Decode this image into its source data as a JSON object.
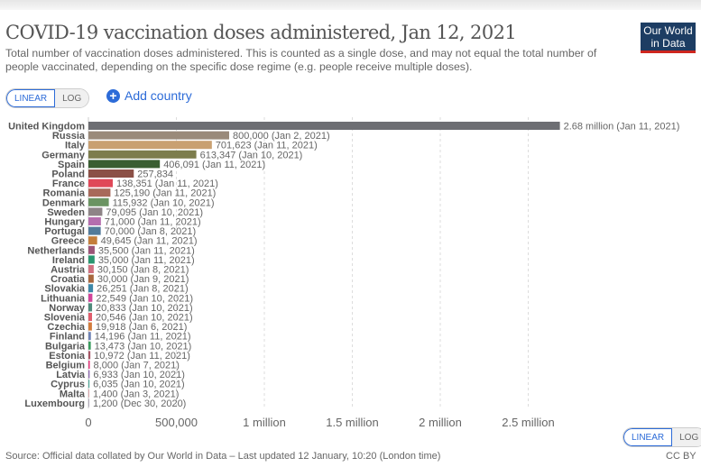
{
  "header": {
    "title": "COVID-19 vaccination doses administered, Jan 12, 2021",
    "subtitle": "Total number of vaccination doses administered. This is counted as a single dose, and may not equal the total number of people vaccinated, depending on the specific dose regime (e.g. people receive multiple doses).",
    "logo": "Our World in Data"
  },
  "controls": {
    "linear": "LINEAR",
    "log": "LOG",
    "add_country": "Add country",
    "add_icon": "plus-circle-icon"
  },
  "footer": {
    "source": "Source: Official data collated by Our World in Data – Last updated 12 January, 10:20 (London time)",
    "license": "CC BY"
  },
  "chart_data": {
    "type": "bar",
    "orientation": "horizontal",
    "xlim": [
      0,
      2680000
    ],
    "grid": true,
    "xticks": [
      0,
      500000,
      1000000,
      1500000,
      2000000,
      2500000
    ],
    "xtick_labels": [
      "0",
      "500,000",
      "1 million",
      "1.5 million",
      "2 million",
      "2.5 million"
    ],
    "rows": [
      {
        "country": "United Kingdom",
        "value": 2680000,
        "label": "2.68 million (Jan 11, 2021)",
        "color": "#6d6e73"
      },
      {
        "country": "Russia",
        "value": 800000,
        "label": "800,000 (Jan 2, 2021)",
        "color": "#9a8a7a"
      },
      {
        "country": "Italy",
        "value": 701623,
        "label": "701,623 (Jan 11, 2021)",
        "color": "#c9a071"
      },
      {
        "country": "Germany",
        "value": 613347,
        "label": "613,347 (Jan 10, 2021)",
        "color": "#7d7d4d"
      },
      {
        "country": "Spain",
        "value": 406091,
        "label": "406,091 (Jan 11, 2021)",
        "color": "#3a5e32"
      },
      {
        "country": "Poland",
        "value": 257834,
        "label": "257,834",
        "color": "#8b5046"
      },
      {
        "country": "France",
        "value": 138351,
        "label": "138,351 (Jan 11, 2021)",
        "color": "#e04858"
      },
      {
        "country": "Romania",
        "value": 125190,
        "label": "125,190 (Jan 11, 2021)",
        "color": "#a8695a"
      },
      {
        "country": "Denmark",
        "value": 115932,
        "label": "115,932 (Jan 10, 2021)",
        "color": "#6b9462"
      },
      {
        "country": "Sweden",
        "value": 79095,
        "label": "79,095 (Jan 10, 2021)",
        "color": "#8e8487"
      },
      {
        "country": "Hungary",
        "value": 71000,
        "label": "71,000 (Jan 11, 2021)",
        "color": "#b56eae"
      },
      {
        "country": "Portugal",
        "value": 70000,
        "label": "70,000 (Jan 8, 2021)",
        "color": "#537b9a"
      },
      {
        "country": "Greece",
        "value": 49645,
        "label": "49,645 (Jan 11, 2021)",
        "color": "#c47e3b"
      },
      {
        "country": "Netherlands",
        "value": 35500,
        "label": "35,500 (Jan 11, 2021)",
        "color": "#9c5478"
      },
      {
        "country": "Ireland",
        "value": 35000,
        "label": "35,000 (Jan 11, 2021)",
        "color": "#2a9670"
      },
      {
        "country": "Austria",
        "value": 30150,
        "label": "30,150 (Jan 8, 2021)",
        "color": "#d07180"
      },
      {
        "country": "Croatia",
        "value": 30000,
        "label": "30,000 (Jan 9, 2021)",
        "color": "#a8673e"
      },
      {
        "country": "Slovakia",
        "value": 26251,
        "label": "26,251 (Jan 8, 2021)",
        "color": "#3d88a8"
      },
      {
        "country": "Lithuania",
        "value": 22549,
        "label": "22,549 (Jan 10, 2021)",
        "color": "#d2449a"
      },
      {
        "country": "Norway",
        "value": 20833,
        "label": "20,833 (Jan 10, 2021)",
        "color": "#4f8a7b"
      },
      {
        "country": "Slovenia",
        "value": 20546,
        "label": "20,546 (Jan 10, 2021)",
        "color": "#e05d6c"
      },
      {
        "country": "Czechia",
        "value": 19918,
        "label": "19,918 (Jan 6, 2021)",
        "color": "#d37c3c"
      },
      {
        "country": "Finland",
        "value": 14196,
        "label": "14,196 (Jan 11, 2021)",
        "color": "#6f83b5"
      },
      {
        "country": "Bulgaria",
        "value": 13473,
        "label": "13,473 (Jan 10, 2021)",
        "color": "#3a9c5e"
      },
      {
        "country": "Estonia",
        "value": 10972,
        "label": "10,972 (Jan 11, 2021)",
        "color": "#a65565"
      },
      {
        "country": "Belgium",
        "value": 8000,
        "label": "8,000 (Jan 7, 2021)",
        "color": "#e53b7e"
      },
      {
        "country": "Latvia",
        "value": 6933,
        "label": "6,933 (Jan 10, 2021)",
        "color": "#8e6ab0"
      },
      {
        "country": "Cyprus",
        "value": 6035,
        "label": "6,035 (Jan 10, 2021)",
        "color": "#4fa89a"
      },
      {
        "country": "Malta",
        "value": 1400,
        "label": "1,400 (Jan 3, 2021)",
        "color": "#d8a3a8"
      },
      {
        "country": "Luxembourg",
        "value": 1200,
        "label": "1,200 (Dec 30, 2020)",
        "color": "#b0a8b8"
      }
    ]
  }
}
